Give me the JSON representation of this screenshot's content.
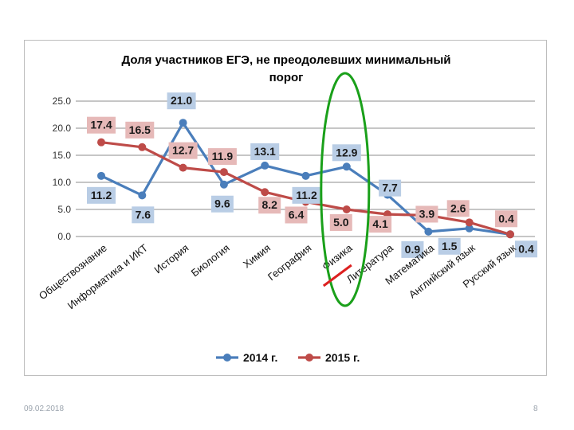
{
  "slide": {
    "date": "09.02.2018",
    "page_number": "8"
  },
  "chart_data": {
    "type": "line",
    "title_line1": "Доля участников ЕГЭ, не преодолевших минимальный",
    "title_line2": "порог",
    "categories": [
      "Обществознание",
      "Информатика и ИКТ",
      "История",
      "Биология",
      "Химия",
      "География",
      "Физика",
      "Литература",
      "Математика",
      "Английский язык",
      "Русский язык"
    ],
    "y_ticks": [
      "25.0",
      "20.0",
      "15.0",
      "10.0",
      "5.0",
      "0.0"
    ],
    "ylim": [
      0,
      25
    ],
    "series": [
      {
        "name": "2014 г.",
        "color": "#4a7ebb",
        "label_bg": "#b9cde5",
        "values": [
          11.2,
          7.6,
          21.0,
          9.6,
          13.1,
          11.2,
          12.9,
          7.7,
          0.9,
          1.5,
          0.4
        ],
        "labels": [
          "11.2",
          "7.6",
          "21.0",
          "9.6",
          "13.1",
          "11.2",
          "12.9",
          "7.7",
          "0.9",
          "1.5",
          "0.4"
        ]
      },
      {
        "name": "2015 г.",
        "color": "#be4b48",
        "label_bg": "#e6b9b8",
        "values": [
          17.4,
          16.5,
          12.7,
          11.9,
          8.2,
          6.4,
          5.0,
          4.1,
          3.9,
          2.6,
          0.4
        ],
        "labels": [
          "17.4",
          "16.5",
          "12.7",
          "11.9",
          "8.2",
          "6.4",
          "5.0",
          "4.1",
          "3.9",
          "2.6",
          "0.4"
        ]
      }
    ],
    "legend_position": "bottom",
    "highlight_category": "Физика",
    "highlight_color": "#1aa01a",
    "underline_color": "#dd2020"
  }
}
